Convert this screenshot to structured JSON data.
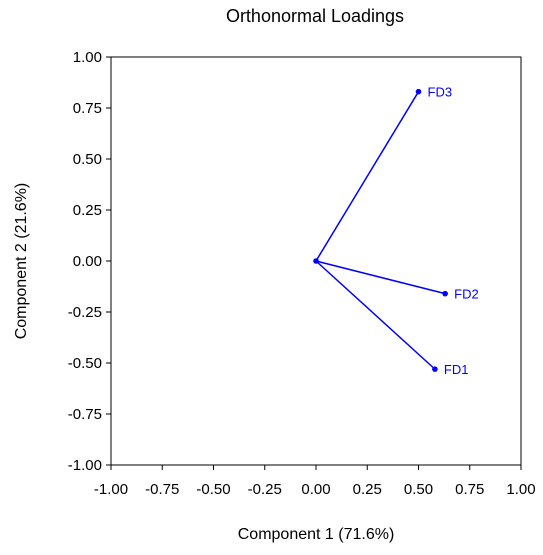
{
  "chart_data": {
    "type": "scatter",
    "title": "Orthonormal Loadings",
    "xlabel": "Component 1 (71.6%)",
    "ylabel": "Component 2 (21.6%)",
    "xlim": [
      -1.0,
      1.0
    ],
    "ylim": [
      -1.0,
      1.0
    ],
    "xticks": [
      "-1.00",
      "-0.75",
      "-0.50",
      "-0.25",
      "0.00",
      "0.25",
      "0.50",
      "0.75",
      "1.00"
    ],
    "yticks": [
      "1.00",
      "0.75",
      "0.50",
      "0.25",
      "0.00",
      "-0.25",
      "-0.50",
      "-0.75",
      "-1.00"
    ],
    "grid": false,
    "origin": [
      0.0,
      0.0
    ],
    "points": [
      {
        "label": "FD1",
        "x": 0.58,
        "y": -0.53
      },
      {
        "label": "FD2",
        "x": 0.63,
        "y": -0.16
      },
      {
        "label": "FD3",
        "x": 0.5,
        "y": 0.83
      }
    ],
    "colors": {
      "series": "#0000ff",
      "axes": "#000000",
      "background": "#ffffff"
    }
  }
}
